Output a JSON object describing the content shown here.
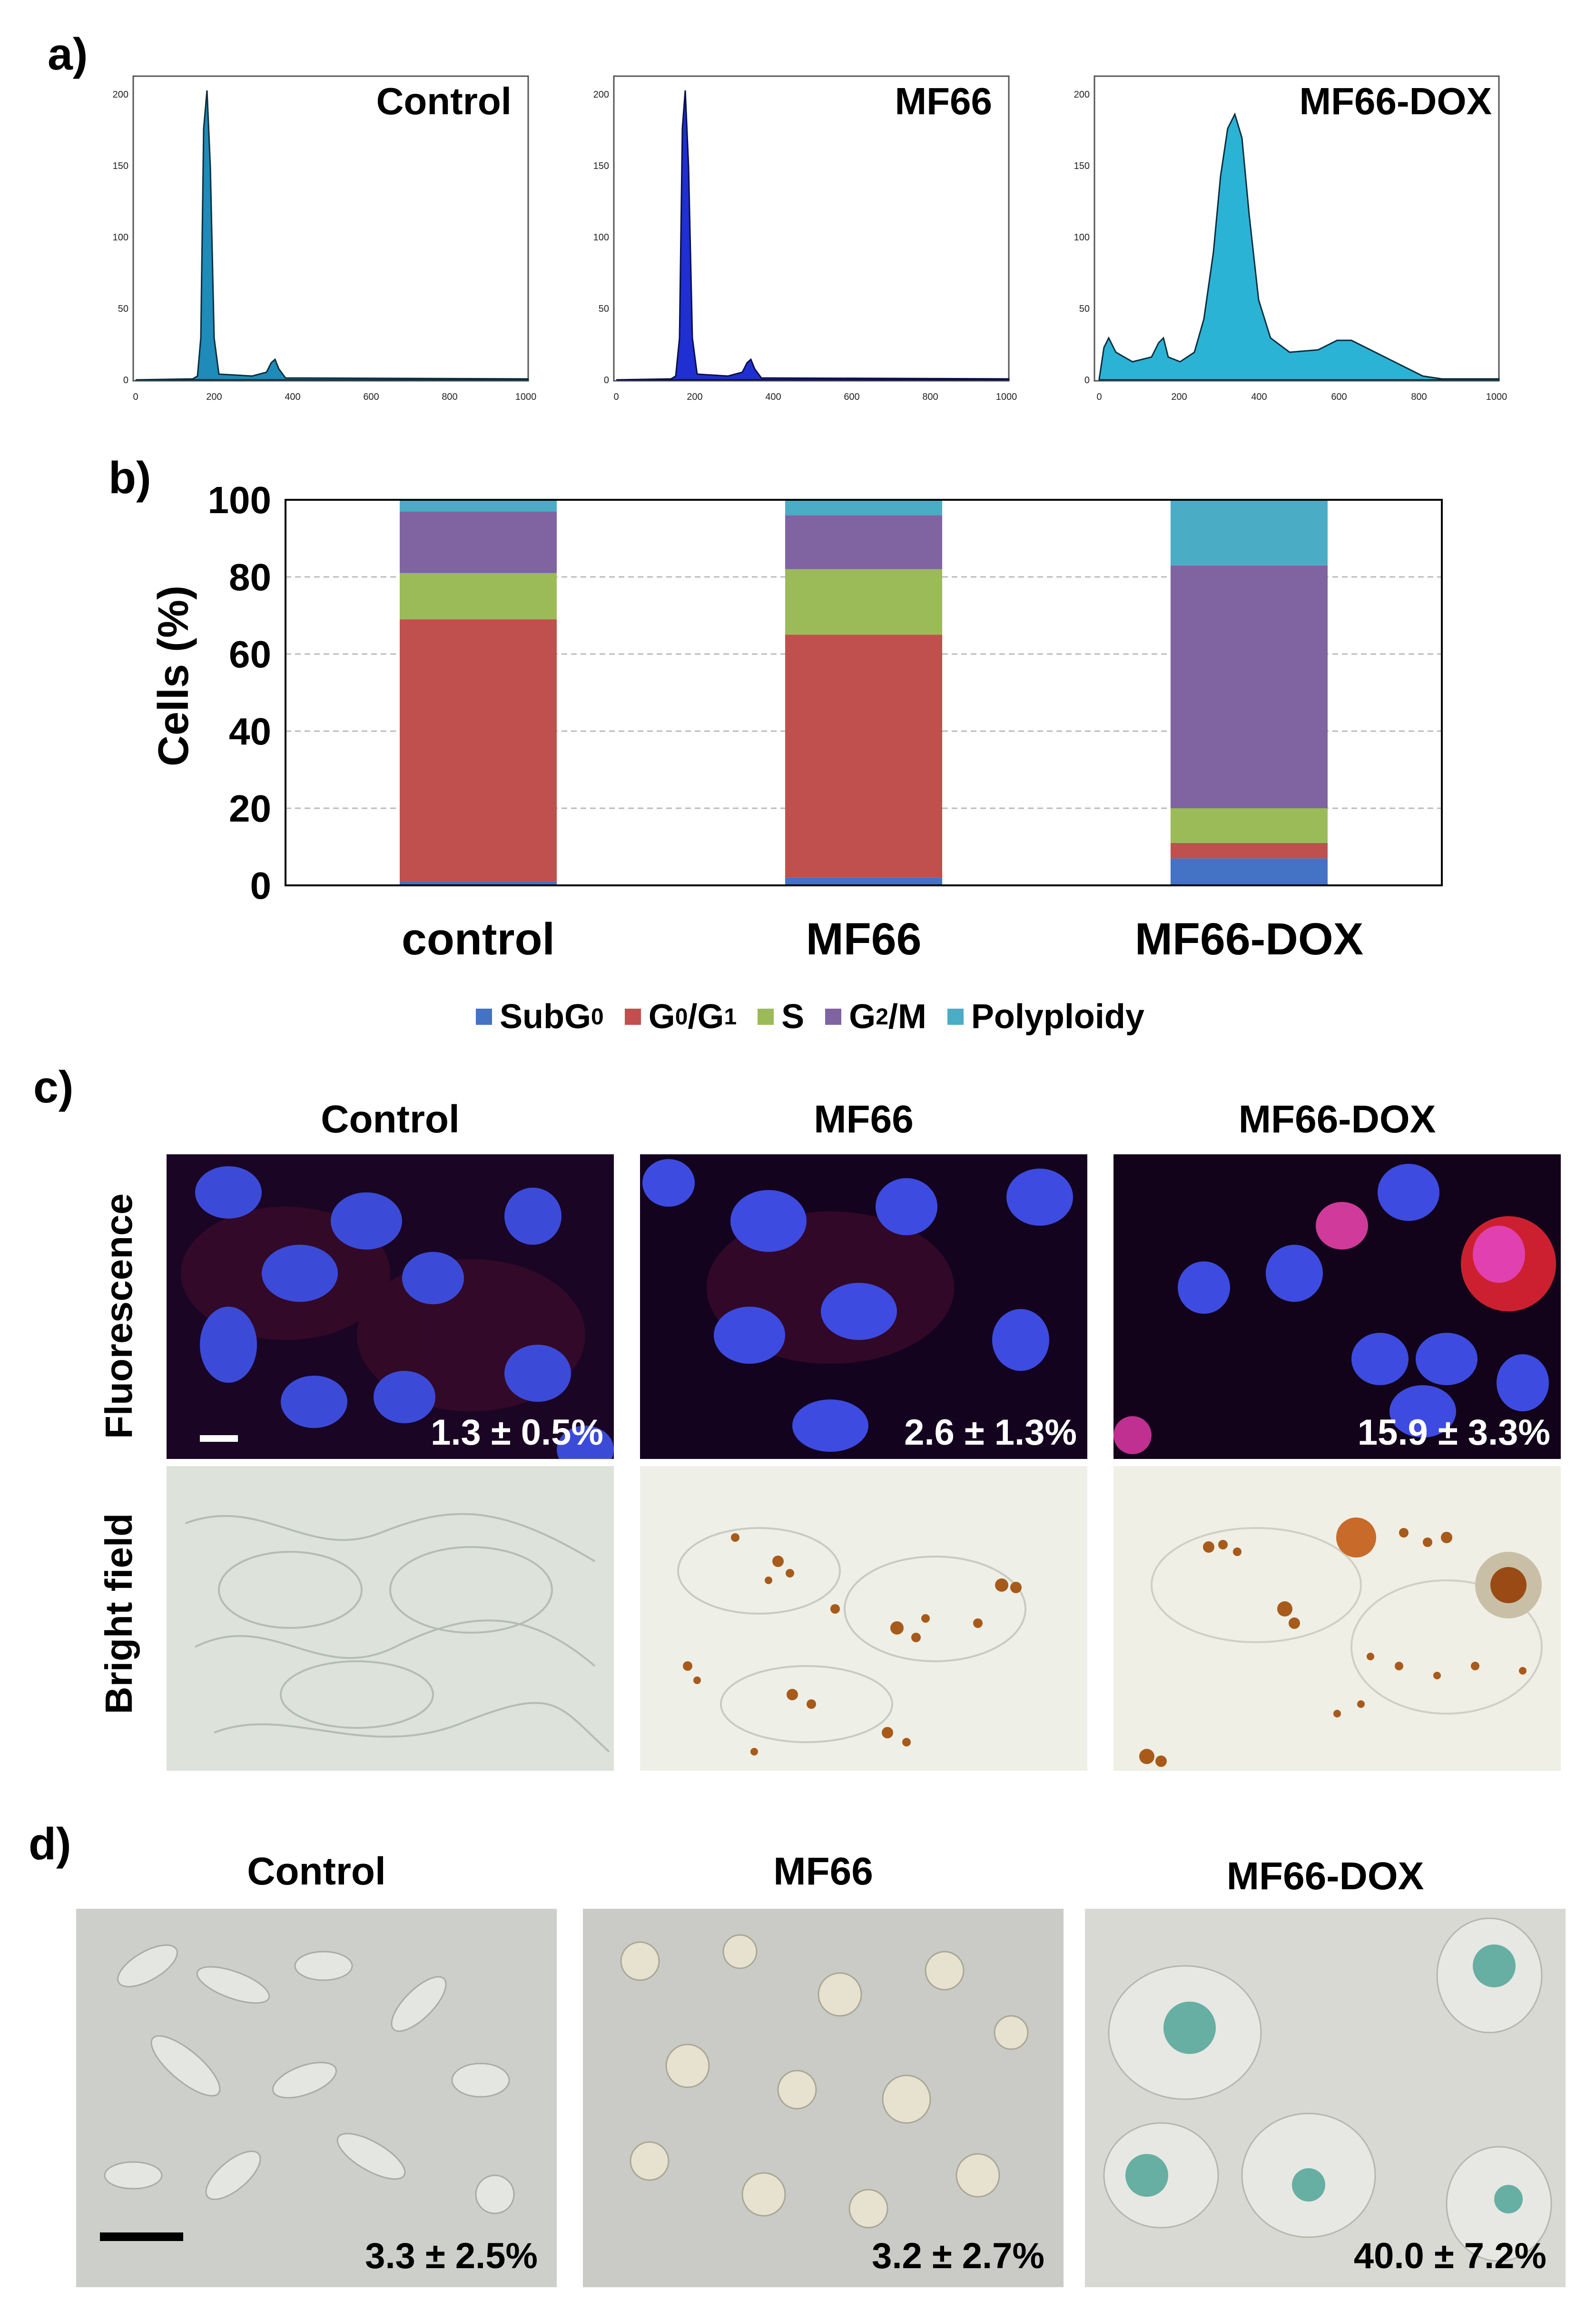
{
  "panels": {
    "a": "a)",
    "b": "b)",
    "c": "c)",
    "d": "d)"
  },
  "histograms": [
    {
      "title": "Control",
      "yticks": [
        "0",
        "50",
        "100",
        "150",
        "200"
      ],
      "xticks": [
        "0",
        "200",
        "400",
        "600",
        "800",
        "1000"
      ],
      "fill": "#1e8bb8"
    },
    {
      "title": "MF66",
      "yticks": [
        "0",
        "50",
        "100",
        "150",
        "200"
      ],
      "xticks": [
        "0",
        "200",
        "400",
        "600",
        "800",
        "1000"
      ],
      "fill": "#1f2fd1"
    },
    {
      "title": "MF66-DOX",
      "yticks": [
        "0",
        "50",
        "100",
        "150",
        "200"
      ],
      "xticks": [
        "0",
        "200",
        "400",
        "600",
        "800",
        "1000"
      ],
      "fill": "#2bb3d6"
    }
  ],
  "chart_data": {
    "type": "bar",
    "stacked": true,
    "categories": [
      "control",
      "MF66",
      "MF66-DOX"
    ],
    "ylabel": "Cells (%)",
    "ylim": [
      0,
      100
    ],
    "yticks": [
      "0",
      "20",
      "40",
      "60",
      "80",
      "100"
    ],
    "grid": true,
    "series": [
      {
        "name": "SubG0",
        "color": "#4472c4",
        "values": [
          1,
          2,
          7
        ]
      },
      {
        "name": "G0/G1",
        "color": "#c0504d",
        "values": [
          68,
          63,
          4
        ]
      },
      {
        "name": "S",
        "color": "#9bbb59",
        "values": [
          12,
          17,
          9
        ]
      },
      {
        "name": "G2/M",
        "color": "#8064a2",
        "values": [
          16,
          14,
          63
        ]
      },
      {
        "name": "Polyploidy",
        "color": "#4bacc6",
        "values": [
          3,
          4,
          17
        ]
      }
    ]
  },
  "legend": {
    "subg0": "SubG",
    "subg0_sub": "0",
    "g0": "G",
    "g0_sub": "0",
    "g1": "/G",
    "g1_sub": "1",
    "s": "S",
    "g2": "G",
    "g2_sub": "2",
    "g2m": "/M",
    "poly": "Polyploidy"
  },
  "panel_c": {
    "titles": [
      "Control",
      "MF66",
      "MF66-DOX"
    ],
    "row_fluorescence": "Fluorescence",
    "row_bright": "Bright field",
    "percents": [
      "1.3 ± 0.5%",
      "2.6 ± 1.3%",
      "15.9 ± 3.3%"
    ]
  },
  "panel_d": {
    "titles": [
      "Control",
      "MF66",
      "MF66-DOX"
    ],
    "percents": [
      "3.3 ± 2.5%",
      "3.2 ± 2.7%",
      "40.0 ± 7.2%"
    ]
  }
}
